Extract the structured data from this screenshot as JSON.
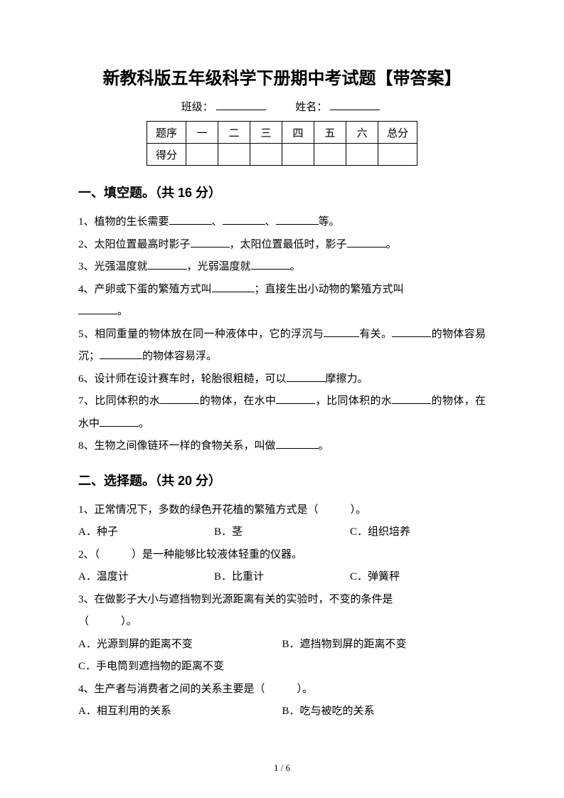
{
  "title": "新教科版五年级科学下册期中考试题【带答案】",
  "meta": {
    "class_label": "班级：",
    "name_label": "姓名："
  },
  "score_table": {
    "row1": [
      "题序",
      "一",
      "二",
      "三",
      "四",
      "五",
      "六",
      "总分"
    ],
    "row2_label": "得分"
  },
  "section1": {
    "heading": "一、填空题。（共 16 分）",
    "q1_a": "1、植物的生长需要",
    "q1_b": "、",
    "q1_c": "、",
    "q1_d": "等。",
    "q2_a": "2、太阳位置最高时影子",
    "q2_b": "，太阳位置最低时，影子",
    "q2_c": "。",
    "q3_a": "3、光强温度就",
    "q3_b": "，光弱温度就",
    "q3_c": "。",
    "q4_a": "4、产卵或下蛋的繁殖方式叫",
    "q4_b": "；直接生出小动物的繁殖方式叫",
    "q4_c": "。",
    "q5_a": "5、相同重量的物体放在同一种液体中，它的浮沉与",
    "q5_b": "有关。",
    "q5_c": "的物体容易沉；",
    "q5_d": "的物体容易浮。",
    "q6_a": "6、设计师在设计赛车时，轮胎很粗糙，可以",
    "q6_b": "摩擦力。",
    "q7_a": "7、比同体积的水",
    "q7_b": "的物体，在水中",
    "q7_c": "，比同体积的水",
    "q7_d": "的物体，在水中",
    "q7_e": "。",
    "q8_a": "8、生物之间像链环一样的食物关系，叫做",
    "q8_b": "。"
  },
  "section2": {
    "heading": "二、选择题。（共 20 分）",
    "q1": "1、正常情况下，多数的绿色开花植的繁殖方式是（　　　）。",
    "q1_opts": {
      "a": "A．种子",
      "b": "B．茎",
      "c": "C．组织培养"
    },
    "q2": "2、（　　　）是一种能够比较液体轻重的仪器。",
    "q2_opts": {
      "a": "A．温度计",
      "b": "B．比重计",
      "c": "C．弹簧秤"
    },
    "q3_l1": "3、在做影子大小与遮挡物到光源距离有关的实验时，不变的条件是",
    "q3_l2": "（　　　）。",
    "q3_opts": {
      "a": "A．光源到屏的距离不变",
      "b": "B．遮挡物到屏的距离不变",
      "c": "C．手电筒到遮挡物的距离不变"
    },
    "q4": "4、生产者与消费者之间的关系主要是（　　　）。",
    "q4_opts": {
      "a": "A．相互利用的关系",
      "b": "B．吃与被吃的关系"
    }
  },
  "page_num": "1 / 6"
}
